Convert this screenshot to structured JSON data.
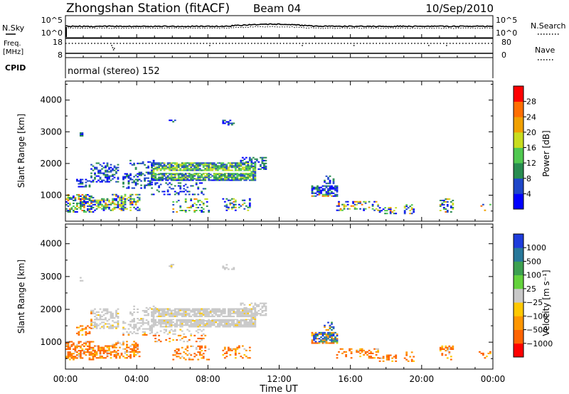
{
  "header": {
    "station": "Zhongshan Station (fitACF)",
    "beam": "Beam 04",
    "date": "10/Sep/2010"
  },
  "strip_panels": {
    "nsky": {
      "left_label": "N.Sky",
      "left_top_tick": "10^5",
      "left_bottom_tick": "10^0",
      "right_top_tick": "10^5",
      "right_bottom_tick": "10^0",
      "right_label": "N.Search"
    },
    "freq": {
      "left_label_line1": "Freq.",
      "left_label_line2": "[MHz]",
      "left_top_tick": "18",
      "left_bottom_tick": "8",
      "right_top_tick": "80",
      "right_bottom_tick": "0",
      "right_label": "Nave",
      "cpid_label": "CPID"
    },
    "cpid_text": "normal (stereo) 152"
  },
  "chart_data": [
    {
      "type": "heatmap",
      "name": "power",
      "ylabel": "Slant Range [km]",
      "ylim": [
        180,
        4600
      ],
      "yticks": [
        "1000",
        "2000",
        "3000",
        "4000"
      ],
      "xlim": [
        0,
        24
      ],
      "colorbar_label": "Power [dB]",
      "colorbar_ticks": [
        "4",
        "8",
        "12",
        "16",
        "20",
        "24",
        "28"
      ],
      "colors": [
        "#0000ff",
        "#1e46c8",
        "#288c50",
        "#50c850",
        "#c8dc1e",
        "#f0a000",
        "#ff6e00",
        "#ff0000"
      ]
    },
    {
      "type": "heatmap",
      "name": "velocity",
      "ylabel": "Slant Range [km]",
      "ylim": [
        180,
        4600
      ],
      "yticks": [
        "1000",
        "2000",
        "3000",
        "4000"
      ],
      "xlim": [
        0,
        24
      ],
      "colorbar_label": "Velocity [m s⁻¹]",
      "colorbar_ticks": [
        "1000",
        "500",
        "100",
        "25",
        "−25",
        "−100",
        "−500",
        "−1000"
      ],
      "colors": [
        "#1e3cdc",
        "#28789a",
        "#3ca050",
        "#64d23c",
        "#c8c8c8",
        "#ffc800",
        "#ff9600",
        "#ff6400",
        "#ff0000"
      ]
    }
  ],
  "x_axis": {
    "ticks": [
      "00:00",
      "04:00",
      "08:00",
      "12:00",
      "16:00",
      "20:00",
      "00:00"
    ],
    "label": "Time UT"
  }
}
